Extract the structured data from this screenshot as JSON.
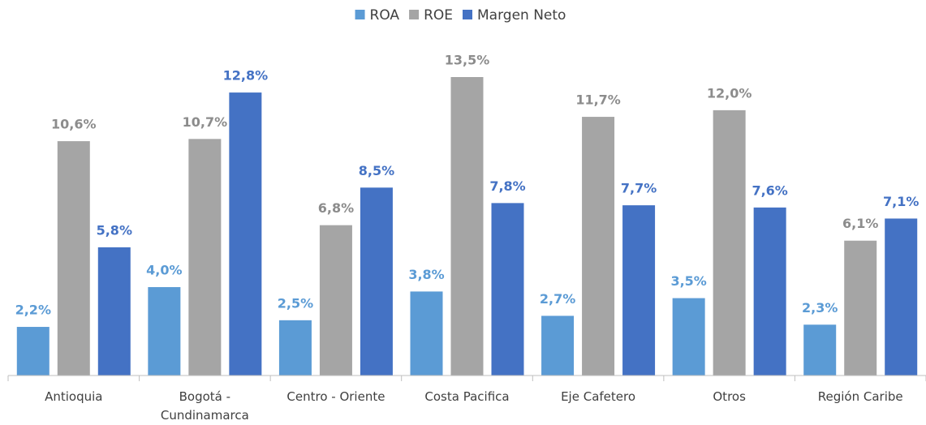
{
  "chart_data": {
    "type": "bar",
    "categories": [
      "Antioquia",
      "Bogotá - Cundinamarca",
      "Centro - Oriente",
      "Costa Pacifica",
      "Eje Cafetero",
      "Otros",
      "Región Caribe"
    ],
    "series": [
      {
        "name": "ROA",
        "color": "#5b9bd5",
        "values": [
          2.2,
          4.0,
          2.5,
          3.8,
          2.7,
          3.5,
          2.3
        ],
        "value_labels": [
          "2,2%",
          "4,0%",
          "2,5%",
          "3,8%",
          "2,7%",
          "3,5%",
          "2,3%"
        ]
      },
      {
        "name": "ROE",
        "color": "#a5a5a5",
        "values": [
          10.6,
          10.7,
          6.8,
          13.5,
          11.7,
          12.0,
          6.1
        ],
        "value_labels": [
          "10,6%",
          "10,7%",
          "6,8%",
          "13,5%",
          "11,7%",
          "12,0%",
          "6,1%"
        ]
      },
      {
        "name": "Margen Neto",
        "color": "#4472c4",
        "values": [
          5.8,
          12.8,
          8.5,
          7.8,
          7.7,
          7.6,
          7.1
        ],
        "value_labels": [
          "5,8%",
          "12,8%",
          "8,5%",
          "7,8%",
          "7,7%",
          "7,6%",
          "7,1%"
        ]
      }
    ],
    "legend": "top"
  }
}
